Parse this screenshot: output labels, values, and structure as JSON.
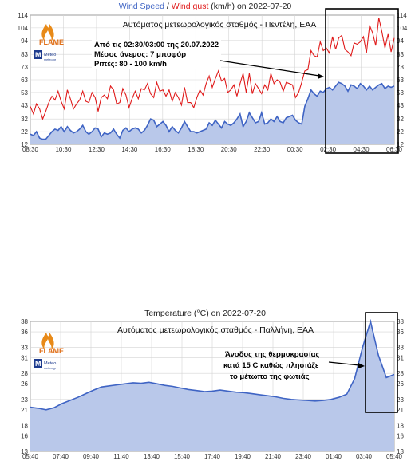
{
  "chart_data": [
    {
      "type": "area",
      "title_parts": {
        "series_a": "Wind Speed",
        "sep": " / ",
        "series_b": "Wind gust",
        "rest": " (km/h) on 2022-07-20"
      },
      "subtitle": "Αυτόματος μετεωρολογικός σταθμός - Πεντέλη, ΕΑΑ",
      "xlabel": "",
      "ylabel": "",
      "x_ticks": [
        "08:30",
        "10:30",
        "12:30",
        "14:30",
        "16:30",
        "18:30",
        "20:30",
        "22:30",
        "00:30",
        "02:30",
        "04:30",
        "06:30"
      ],
      "y_ticks": [
        12,
        22,
        32,
        43,
        53,
        63,
        73,
        83,
        94,
        104,
        114
      ],
      "ylim": [
        12,
        114
      ],
      "grid": true,
      "colors": {
        "series_a": "#3f64c4",
        "series_a_fill": "#b9c8ea",
        "series_b": "#e01b1b"
      },
      "series": [
        {
          "name": "Wind Speed",
          "values": [
            20,
            19,
            22,
            17,
            16,
            16,
            19,
            22,
            24,
            23,
            26,
            22,
            26,
            23,
            21,
            22,
            24,
            27,
            22,
            20,
            22,
            25,
            24,
            18,
            21,
            20,
            21,
            24,
            20,
            17,
            23,
            25,
            22,
            24,
            25,
            24,
            21,
            23,
            27,
            32,
            31,
            26,
            28,
            30,
            27,
            22,
            26,
            23,
            21,
            25,
            30,
            26,
            22,
            22,
            21,
            22,
            23,
            24,
            29,
            27,
            31,
            28,
            25,
            30,
            28,
            27,
            29,
            32,
            36,
            26,
            30,
            37,
            33,
            29,
            30,
            37,
            28,
            29,
            32,
            30,
            34,
            30,
            29,
            33,
            34,
            35,
            31,
            29,
            28,
            42,
            48,
            55,
            52,
            50,
            54,
            53,
            56,
            57,
            55,
            58,
            61,
            60,
            58,
            54,
            59,
            58,
            56,
            60,
            58,
            55,
            58,
            55,
            57,
            59,
            60,
            56,
            58,
            57,
            58
          ]
        },
        {
          "name": "Wind gust",
          "values": [
            42,
            36,
            44,
            40,
            32,
            38,
            45,
            50,
            47,
            54,
            46,
            40,
            55,
            48,
            40,
            44,
            47,
            54,
            46,
            45,
            53,
            49,
            38,
            49,
            51,
            48,
            58,
            55,
            44,
            45,
            56,
            51,
            41,
            48,
            54,
            48,
            56,
            55,
            60,
            52,
            49,
            61,
            54,
            55,
            50,
            55,
            46,
            53,
            49,
            43,
            57,
            45,
            45,
            41,
            49,
            55,
            51,
            60,
            66,
            57,
            64,
            70,
            62,
            64,
            53,
            55,
            59,
            50,
            60,
            68,
            53,
            68,
            52,
            60,
            56,
            52,
            59,
            55,
            68,
            60,
            63,
            61,
            54,
            61,
            60,
            59,
            49,
            53,
            61,
            70,
            71,
            86,
            82,
            81,
            93,
            86,
            88,
            84,
            97,
            87,
            96,
            98,
            87,
            85,
            82,
            92,
            91,
            93,
            97,
            84,
            106,
            100,
            90,
            112,
            101,
            88,
            99,
            85,
            96
          ]
        }
      ],
      "annotation_lines": [
        "Από τις 02:30/03:00 της 20.07.2022",
        "Μέσος άνεμος: 7 μποφόρ",
        "Ριπές: 80 - 100 km/h"
      ]
    },
    {
      "type": "area",
      "title": "Temperature (°C) on 2022-07-20",
      "subtitle": "Αυτόματος μετεωρολογικός σταθμός - Παλλήνη, ΕΑΑ",
      "xlabel": "",
      "ylabel": "",
      "x_ticks": [
        "05:40",
        "07:40",
        "09:40",
        "11:40",
        "13:40",
        "15:40",
        "17:40",
        "19:40",
        "21:40",
        "23:40",
        "01:40",
        "03:40",
        "05:40"
      ],
      "y_ticks": [
        13,
        16,
        18,
        21,
        23,
        26,
        28,
        31,
        33,
        36,
        38
      ],
      "ylim": [
        13,
        38
      ],
      "grid": true,
      "colors": {
        "line": "#3f64c4",
        "fill": "#b9c8ea"
      },
      "series": [
        {
          "name": "Temperature",
          "values": [
            21.5,
            21.3,
            21.0,
            21.4,
            22.2,
            22.8,
            23.4,
            24.1,
            24.8,
            25.4,
            25.6,
            25.8,
            26.0,
            26.2,
            26.1,
            26.3,
            26.0,
            25.7,
            25.5,
            25.2,
            24.9,
            24.7,
            24.5,
            24.6,
            24.8,
            24.6,
            24.4,
            24.3,
            24.1,
            23.9,
            23.7,
            23.5,
            23.2,
            23.0,
            22.9,
            22.8,
            22.7,
            22.8,
            23.0,
            23.4,
            24.0,
            27.0,
            33.0,
            38.0,
            31.5,
            27.2,
            27.8
          ]
        }
      ],
      "annotation_lines": [
        "Άνοδος της θερμοκρασίας",
        "κατά 15 C καθώς πλησιάζε",
        "το μέτωπο της φωτιάς"
      ]
    }
  ],
  "logo": {
    "text_main": "FLAME",
    "text_meteo": "Meteo",
    "text_small": "meteo.gr"
  }
}
